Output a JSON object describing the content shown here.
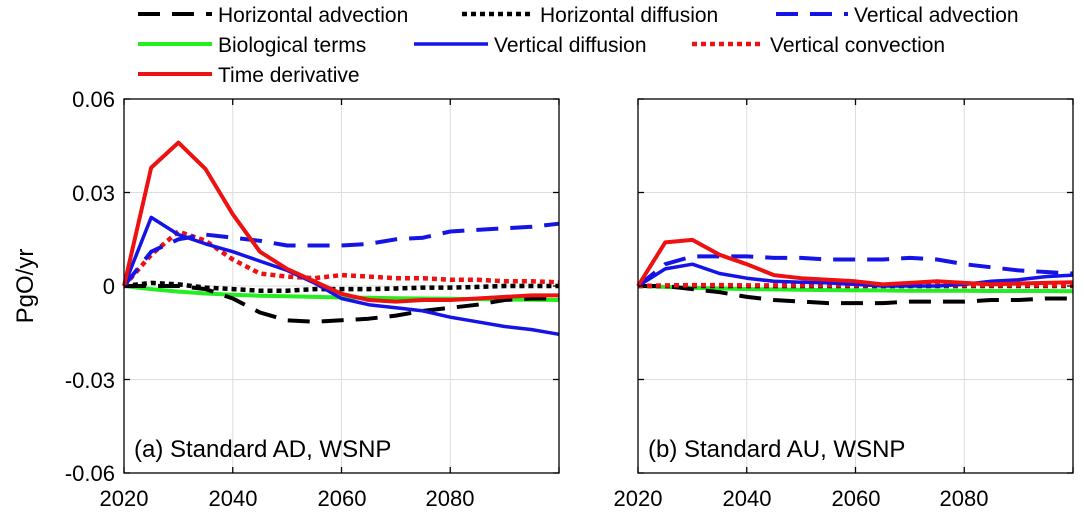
{
  "chart_data": {
    "type": "line",
    "ylabel": "PgO/yr",
    "xlim": [
      2020,
      2100
    ],
    "ylim": [
      -0.06,
      0.06
    ],
    "x_ticks": [
      "2020",
      "2040",
      "2060",
      "2080"
    ],
    "y_ticks": [
      "0.06",
      "0.03",
      "0",
      "-0.03",
      "-0.06"
    ],
    "grid": true,
    "legend": {
      "placement": "top",
      "entries": [
        {
          "key": "hadv",
          "label": "Horizontal advection"
        },
        {
          "key": "hdif",
          "label": "Horizontal diffusion"
        },
        {
          "key": "vadv",
          "label": "Vertical advection"
        },
        {
          "key": "bio",
          "label": "Biological terms"
        },
        {
          "key": "vdif",
          "label": "Vertical diffusion"
        },
        {
          "key": "vcon",
          "label": "Vertical convection"
        },
        {
          "key": "dt",
          "label": "Time derivative"
        }
      ]
    },
    "series_styles": {
      "hadv": {
        "color": "#000000",
        "dash": "22,12",
        "width": 4
      },
      "hdif": {
        "color": "#000000",
        "dash": "5,4",
        "width": 4.5
      },
      "vadv": {
        "color": "#1414e6",
        "dash": "22,12",
        "width": 4
      },
      "bio": {
        "color": "#22ee22",
        "dash": "",
        "width": 4
      },
      "vdif": {
        "color": "#1414e6",
        "dash": "",
        "width": 3.5
      },
      "vcon": {
        "color": "#ee1111",
        "dash": "5,4",
        "width": 4.5
      },
      "dt": {
        "color": "#ee1111",
        "dash": "",
        "width": 4
      }
    },
    "panels": [
      {
        "label": "(a) Standard AD, WSNP",
        "x": [
          2020,
          2025,
          2030,
          2035,
          2040,
          2045,
          2050,
          2055,
          2060,
          2065,
          2070,
          2075,
          2080,
          2085,
          2090,
          2095,
          2100
        ],
        "series": {
          "hadv": [
            0,
            0,
            0,
            -0.001,
            -0.004,
            -0.0085,
            -0.011,
            -0.0115,
            -0.011,
            -0.0105,
            -0.0095,
            -0.008,
            -0.007,
            -0.006,
            -0.0045,
            -0.004,
            -0.004
          ],
          "hdif": [
            0,
            0.001,
            0.0005,
            -0.0005,
            -0.001,
            -0.0015,
            -0.0015,
            -0.001,
            -0.001,
            -0.001,
            -0.0008,
            -0.0005,
            -0.0005,
            -0.0003,
            0,
            0,
            0
          ],
          "vadv": [
            0,
            0.011,
            0.015,
            0.0165,
            0.0155,
            0.0145,
            0.013,
            0.013,
            0.013,
            0.0135,
            0.015,
            0.0155,
            0.0175,
            0.018,
            0.0185,
            0.019,
            0.02
          ],
          "bio": [
            0,
            -0.001,
            -0.0018,
            -0.0024,
            -0.0028,
            -0.0031,
            -0.0033,
            -0.0035,
            -0.0037,
            -0.0038,
            -0.0039,
            -0.004,
            -0.0041,
            -0.0042,
            -0.0043,
            -0.0044,
            -0.0045
          ],
          "vdif": [
            0,
            0.022,
            0.0165,
            0.0135,
            0.011,
            0.008,
            0.005,
            0.001,
            -0.004,
            -0.006,
            -0.007,
            -0.008,
            -0.01,
            -0.0115,
            -0.013,
            -0.014,
            -0.0155
          ],
          "vcon": [
            0,
            0.01,
            0.0175,
            0.0145,
            0.0085,
            0.004,
            0.003,
            0.0025,
            0.0035,
            0.003,
            0.0025,
            0.0025,
            0.002,
            0.002,
            0.0015,
            0.0015,
            0.0012
          ],
          "dt": [
            0,
            0.038,
            0.046,
            0.0375,
            0.023,
            0.011,
            0.0055,
            0.0015,
            -0.0025,
            -0.0045,
            -0.005,
            -0.0045,
            -0.0045,
            -0.004,
            -0.0035,
            -0.003,
            -0.003
          ]
        }
      },
      {
        "label": "(b) Standard AU, WSNP",
        "x": [
          2020,
          2025,
          2030,
          2035,
          2040,
          2045,
          2050,
          2055,
          2060,
          2065,
          2070,
          2075,
          2080,
          2085,
          2090,
          2095,
          2100
        ],
        "series": {
          "hadv": [
            0,
            0,
            -0.001,
            -0.002,
            -0.0035,
            -0.0045,
            -0.005,
            -0.0055,
            -0.0055,
            -0.0055,
            -0.005,
            -0.005,
            -0.005,
            -0.0045,
            -0.0045,
            -0.004,
            -0.004
          ],
          "hdif": [
            0,
            0,
            0,
            0,
            0,
            0,
            0,
            0,
            0,
            0,
            0,
            0,
            0,
            0,
            0,
            0,
            0
          ],
          "vadv": [
            0,
            0.007,
            0.0095,
            0.0095,
            0.0095,
            0.009,
            0.009,
            0.0085,
            0.0085,
            0.0085,
            0.009,
            0.0085,
            0.007,
            0.006,
            0.005,
            0.0045,
            0.004
          ],
          "bio": [
            0,
            -0.0003,
            -0.0006,
            -0.0008,
            -0.001,
            -0.0011,
            -0.0012,
            -0.0013,
            -0.0014,
            -0.0014,
            -0.0015,
            -0.0015,
            -0.0015,
            -0.0016,
            -0.0016,
            -0.0016,
            -0.0017
          ],
          "vdif": [
            0,
            0.0055,
            0.007,
            0.004,
            0.0025,
            0.0015,
            0.0012,
            0.001,
            0.0005,
            0,
            0,
            0,
            0.0005,
            0.0015,
            0.002,
            0.003,
            0.0035
          ],
          "vcon": [
            0,
            0.0002,
            0.0003,
            0.0003,
            0.0002,
            0.0002,
            0.0002,
            0.0002,
            0.0002,
            0.0002,
            0.0002,
            0.0002,
            0.0002,
            0.0002,
            0.0002,
            0.0002,
            0.0002
          ],
          "dt": [
            0,
            0.014,
            0.0148,
            0.01,
            0.007,
            0.0035,
            0.0025,
            0.002,
            0.0015,
            0.0005,
            0.001,
            0.0015,
            0.001,
            0.0005,
            0.0008,
            0.001,
            0.0012
          ]
        }
      }
    ]
  }
}
